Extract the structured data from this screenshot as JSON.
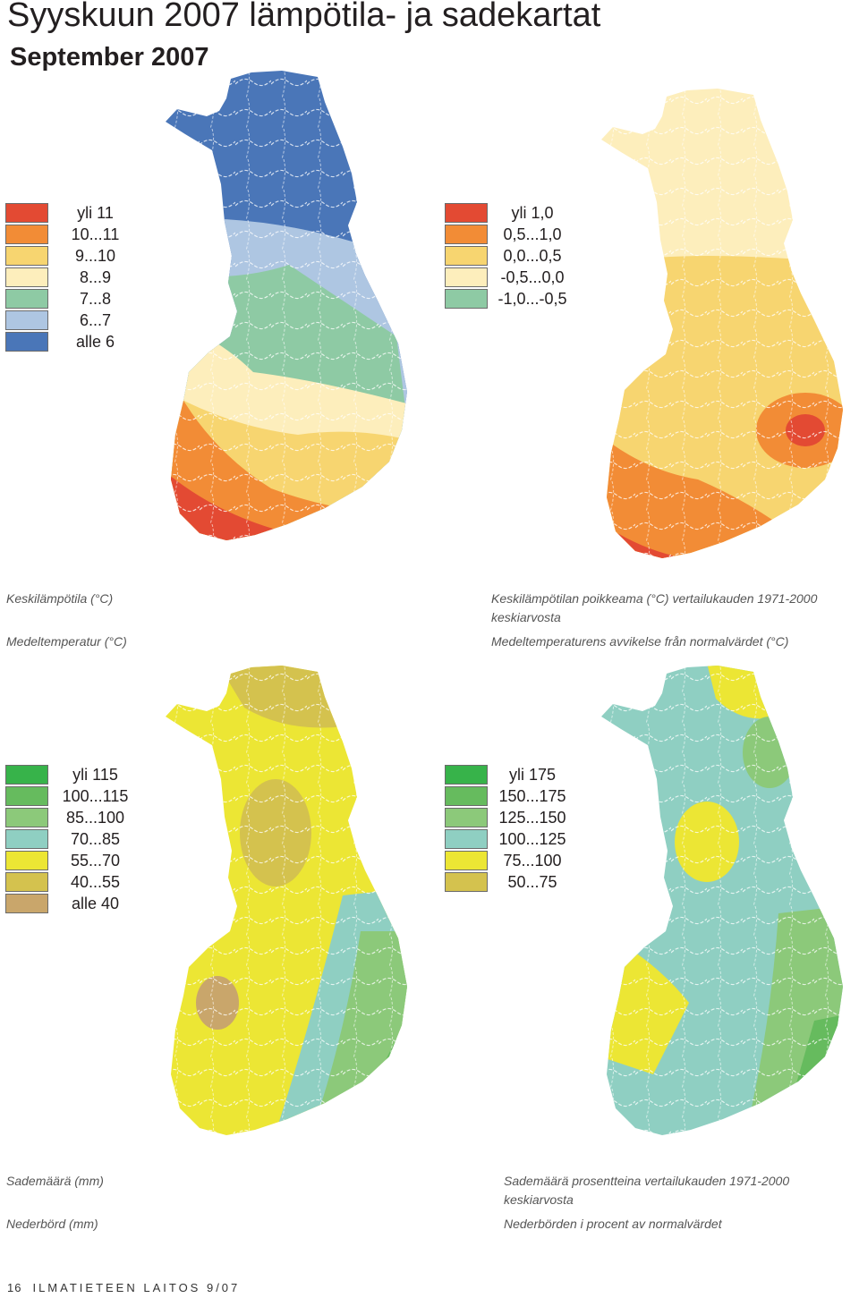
{
  "page": {
    "title": "Syyskuun  2007 lämpötila- ja sadekartat",
    "subtitle": "September 2007",
    "footer_page": "16",
    "footer_text": "ILMATIETEEN LAITOS 9/07"
  },
  "maps": [
    {
      "id": "temp",
      "caption_fi": "Keskilämpötila (°C)",
      "caption_sv": "Medeltemperatur (°C)",
      "legend": [
        {
          "label": "yli 11",
          "color": "#e34a33"
        },
        {
          "label": "10...11",
          "color": "#f28c36"
        },
        {
          "label": "9...10",
          "color": "#f7d570"
        },
        {
          "label": "8...9",
          "color": "#fdeebc"
        },
        {
          "label": "7...8",
          "color": "#8ecaa4"
        },
        {
          "label": "6...7",
          "color": "#aec6e2"
        },
        {
          "label": "alle 6",
          "color": "#4a76b8"
        }
      ]
    },
    {
      "id": "temp_anomaly",
      "caption_fi": "Keskilämpötilan poikkeama (°C) vertailukauden 1971-2000 keskiarvosta",
      "caption_sv": "Medeltemperaturens avvikelse från normalvärdet (°C)",
      "legend": [
        {
          "label": "yli 1,0",
          "color": "#e34a33"
        },
        {
          "label": "0,5...1,0",
          "color": "#f28c36"
        },
        {
          "label": "0,0...0,5",
          "color": "#f7d570"
        },
        {
          "label": "-0,5...0,0",
          "color": "#fdeebc"
        },
        {
          "label": "-1,0...-0,5",
          "color": "#8ecaa4"
        }
      ]
    },
    {
      "id": "precip",
      "caption_fi": "Sademäärä (mm)",
      "caption_sv": "Nederbörd (mm)",
      "legend": [
        {
          "label": "yli 115",
          "color": "#37b34a"
        },
        {
          "label": "100...115",
          "color": "#66bb5e"
        },
        {
          "label": "85...100",
          "color": "#8cc97a"
        },
        {
          "label": "70...85",
          "color": "#8fcfc2"
        },
        {
          "label": "55...70",
          "color": "#ece634"
        },
        {
          "label": "40...55",
          "color": "#d4c24e"
        },
        {
          "label": "alle 40",
          "color": "#c9a66b"
        }
      ]
    },
    {
      "id": "precip_percent",
      "caption_fi": "Sademäärä prosentteina vertailukauden 1971-2000 keskiarvosta",
      "caption_sv": "Nederbörden i procent av normalvärdet",
      "legend": [
        {
          "label": "yli 175",
          "color": "#37b34a"
        },
        {
          "label": "150...175",
          "color": "#66bb5e"
        },
        {
          "label": "125...150",
          "color": "#8cc97a"
        },
        {
          "label": "100...125",
          "color": "#8fcfc2"
        },
        {
          "label": "75...100",
          "color": "#ece634"
        },
        {
          "label": "50...75",
          "color": "#d4c24e"
        }
      ]
    }
  ]
}
